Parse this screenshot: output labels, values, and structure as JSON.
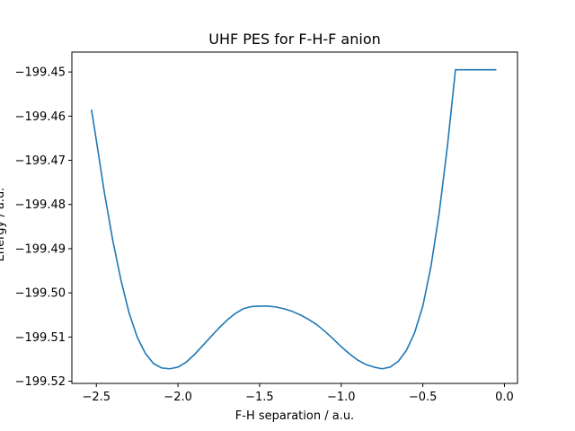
{
  "chart_data": {
    "type": "line",
    "title": "UHF PES for F-H-F anion",
    "xlabel": "F-H separation / a.u.",
    "ylabel": "Energy / a.u.",
    "xlim": [
      -2.65,
      0.08
    ],
    "ylim": [
      -199.5205,
      -199.4455
    ],
    "xticks": [
      -2.5,
      -2.0,
      -1.5,
      -1.0,
      -0.5,
      0.0
    ],
    "xtick_labels": [
      "−2.5",
      "−2.0",
      "−1.5",
      "−1.0",
      "−0.5",
      "0.0"
    ],
    "yticks": [
      -199.52,
      -199.51,
      -199.5,
      -199.49,
      -199.48,
      -199.47,
      -199.46,
      -199.45
    ],
    "ytick_labels": [
      "−199.52",
      "−199.51",
      "−199.50",
      "−199.49",
      "−199.48",
      "−199.47",
      "−199.46",
      "−199.45"
    ],
    "grid": false,
    "series": [
      {
        "color": "#1f77b4",
        "x": [
          -2.53,
          -2.5,
          -2.45,
          -2.4,
          -2.35,
          -2.3,
          -2.25,
          -2.2,
          -2.15,
          -2.1,
          -2.05,
          -2.0,
          -1.95,
          -1.9,
          -1.85,
          -1.8,
          -1.75,
          -1.7,
          -1.65,
          -1.6,
          -1.55,
          -1.5,
          -1.45,
          -1.4,
          -1.35,
          -1.3,
          -1.25,
          -1.2,
          -1.15,
          -1.1,
          -1.05,
          -1.0,
          -0.95,
          -0.9,
          -0.85,
          -0.8,
          -0.75,
          -0.7,
          -0.65,
          -0.6,
          -0.55,
          -0.5,
          -0.45,
          -0.4,
          -0.35,
          -0.3,
          -0.25,
          -0.2,
          -0.15,
          -0.1,
          -0.05
        ],
        "y": [
          -199.4585,
          -199.4655,
          -199.4775,
          -199.488,
          -199.497,
          -199.5045,
          -199.51,
          -199.5137,
          -199.516,
          -199.517,
          -199.5172,
          -199.5168,
          -199.5157,
          -199.514,
          -199.512,
          -199.51,
          -199.508,
          -199.5062,
          -199.5047,
          -199.5036,
          -199.5031,
          -199.503,
          -199.503,
          -199.5032,
          -199.5036,
          -199.5042,
          -199.505,
          -199.506,
          -199.5072,
          -199.5087,
          -199.5104,
          -199.5122,
          -199.5138,
          -199.5152,
          -199.5162,
          -199.5168,
          -199.5172,
          -199.5168,
          -199.5155,
          -199.513,
          -199.509,
          -199.503,
          -199.494,
          -199.482,
          -199.467,
          -199.4495,
          -199.4495,
          -199.4495,
          -199.4495,
          -199.4495,
          -199.4495
        ]
      }
    ]
  }
}
